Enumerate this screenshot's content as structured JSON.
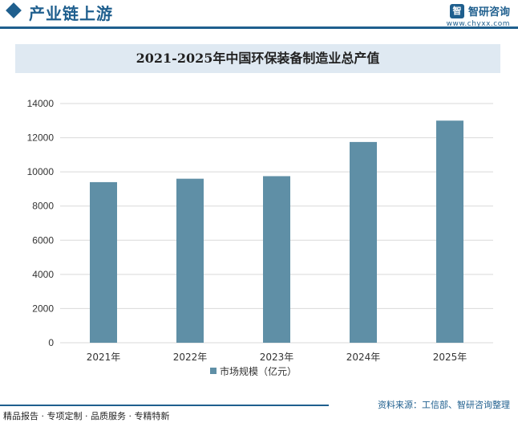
{
  "header": {
    "title": "产业链上游",
    "logo_name": "智研咨询",
    "logo_url": "www.chyxx.com"
  },
  "chart_data": {
    "type": "bar",
    "title": "2021-2025年中国环保装备制造业总产值",
    "categories": [
      "2021年",
      "2022年",
      "2023年",
      "2024年",
      "2025年"
    ],
    "series": [
      {
        "name": "市场规模（亿元）",
        "values": [
          9400,
          9600,
          9750,
          11750,
          13000
        ],
        "color": "#5f8fa6"
      }
    ],
    "ylim": [
      0,
      14000
    ],
    "yticks": [
      0,
      2000,
      4000,
      6000,
      8000,
      10000,
      12000,
      14000
    ],
    "grid": true,
    "legend_position": "bottom"
  },
  "footer": {
    "left": "精品报告 · 专项定制 · 品质服务 · 专精特新",
    "source": "资料来源：工信部、智研咨询整理"
  },
  "colors": {
    "brand": "#1f5f8e",
    "bar": "#5f8fa6",
    "title_band": "#dfe9f2",
    "grid": "#d9d9d9"
  }
}
